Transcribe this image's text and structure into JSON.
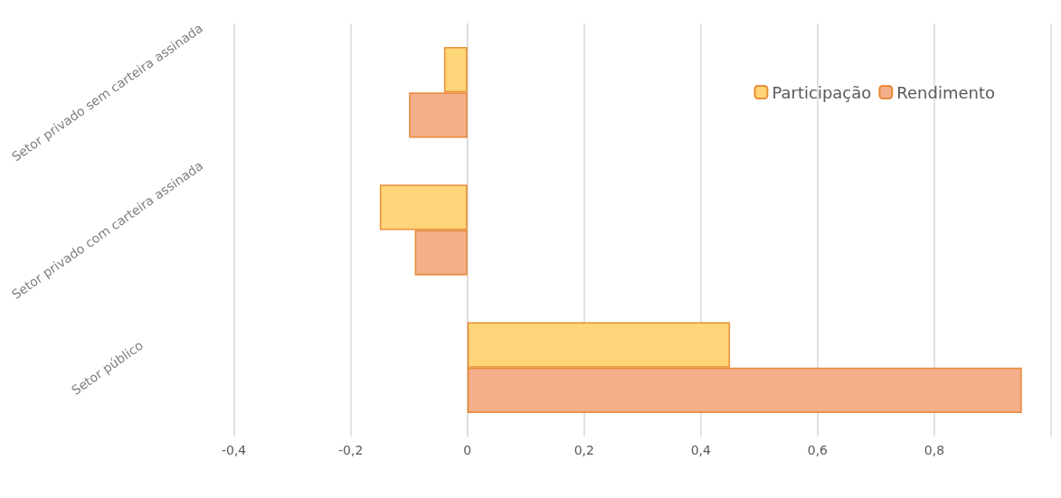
{
  "chart_data": {
    "type": "bar",
    "orientation": "horizontal",
    "categories": [
      "Setor privado sem carteira assinada",
      "Setor privado com carteira assinada",
      "Setor público"
    ],
    "series": [
      {
        "name": "Participação",
        "color": "#ffd57a",
        "values": [
          -0.04,
          -0.15,
          0.45
        ]
      },
      {
        "name": "Rendimento",
        "color": "#f4ae8a",
        "values": [
          -0.1,
          -0.09,
          0.95
        ]
      }
    ],
    "xlim": [
      -0.4,
      1.0
    ],
    "xticks": [
      {
        "value": -0.4,
        "label": "-0,4"
      },
      {
        "value": -0.2,
        "label": "-0,2"
      },
      0,
      {
        "value": 0.2,
        "label": "0,2"
      },
      {
        "value": 0.4,
        "label": "0,4"
      },
      {
        "value": 0.6,
        "label": "0,6"
      },
      {
        "value": 0.8,
        "label": "0,8"
      },
      {
        "value": 1.0,
        "label": null
      }
    ],
    "grid": "x",
    "legend": "top right"
  }
}
